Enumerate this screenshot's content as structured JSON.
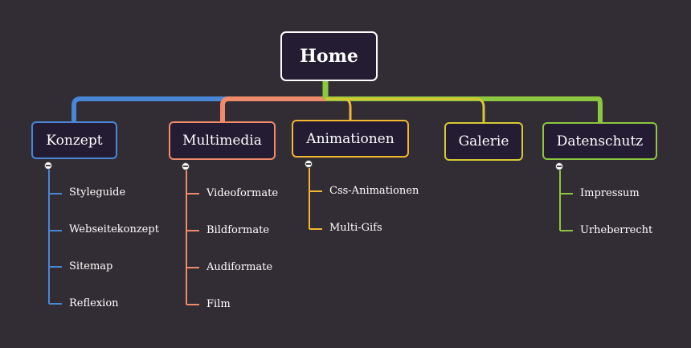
{
  "root": {
    "label": "Home"
  },
  "branches": [
    {
      "key": "konzept",
      "label": "Konzept",
      "color": "#4a86d6",
      "items": [
        "Styleguide",
        "Webseitekonzept",
        "Sitemap",
        "Reflexion"
      ]
    },
    {
      "key": "multimedia",
      "label": "Multimedia",
      "color": "#ef8a6a",
      "items": [
        "Videoformate",
        "Bildformate",
        "Audiformate",
        "Film"
      ]
    },
    {
      "key": "animationen",
      "label": "Animationen",
      "color": "#f2b632",
      "items": [
        "Css-Animationen",
        "Multi-Gifs"
      ]
    },
    {
      "key": "galerie",
      "label": "Galerie",
      "color": "#d6c935",
      "items": []
    },
    {
      "key": "datenschutz",
      "label": "Datenschutz",
      "color": "#8dc63f",
      "items": [
        "Impressum",
        "Urheberrecht"
      ]
    }
  ],
  "colors": {
    "background": "#322d34",
    "node_fill": "#241c33",
    "root_border": "#ffffff",
    "trunk": "#8dc63f"
  }
}
